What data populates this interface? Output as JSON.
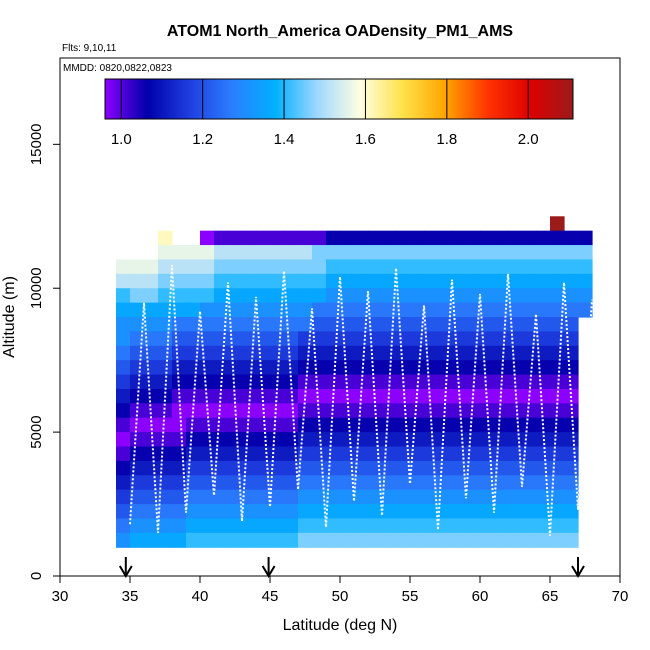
{
  "chart_data": {
    "type": "heatmap",
    "title": "ATOM1 North_America OADensity_PM1_AMS",
    "flights_label": "Flts: 9,10,11",
    "dates_label": "MMDD: 0820,0822,0823",
    "xlabel": "Latitude (deg N)",
    "ylabel": "Altitude (m)",
    "xlim": [
      30,
      70
    ],
    "ylim": [
      0,
      18000
    ],
    "x_ticks": [
      30,
      35,
      40,
      45,
      50,
      55,
      60,
      65,
      70
    ],
    "y_ticks": [
      0,
      5000,
      10000,
      15000
    ],
    "colorbar": {
      "range": [
        0.96,
        2.11
      ],
      "ticks": [
        1.0,
        1.2,
        1.4,
        1.6,
        1.8,
        2.0
      ],
      "tick_labels": [
        "1.0",
        "1.2",
        "1.4",
        "1.6",
        "1.8",
        "2.0"
      ],
      "stops": [
        "#8b00ff",
        "#0000aa",
        "#1f3fe0",
        "#2a7fff",
        "#00b0ff",
        "#a0d8ff",
        "#ffffe0",
        "#ffe14a",
        "#ffa500",
        "#ff3300",
        "#dd0000",
        "#9b1b1b"
      ]
    },
    "grid": {
      "lat_start": 34,
      "lat_step": 1,
      "alt_start": 1000,
      "alt_step": 500,
      "nodata_symbol": ".",
      "rows": [
        "...............................X....",
        "...N..ABBBBBBBBCCCCCCCCCCCCCCCCCCC..",
        "...MMMMLLLLLLLKKKKKKKKKKKKKKKKKKKK..",
        "MMMLLLLKKKKKKKKJJJJJJJJJJJJJJJJJJJ..",
        "LLLKKKKJJJJJJJJIIIIIIIIIIIIIIIIIII..",
        "JKKJJJJIIIIIIIIHHHHHHHHHHHHHHHHHHH..",
        "IIIIIIHHHHHHHHGGGGGGGGGGGGGGGGGGGG..",
        "HHHHGGGGGGGGGGFFFFFFFFFFFFFFFFFFF...",
        "HGGGFFFFFFFFFEEEEEEEEEEEEEEEEEEEE...",
        "GFFFEEEEEEEEEDDDDDDDDDDDDDDDDDDDD...",
        "FEEEDDDDDDDDDCCCCCCCCCCCCCCCCCCCC...",
        "EDDDCCCCCCCCCBBBBBBBBBBBBBBBBBBBB...",
        "DCCCBBBBBBBBBAAAAAAAAAAAAAAAAAAAA...",
        "CBBBAAAAAAAAABBBBBBBBBBBBBBBBBBBB...",
        "BAAAABBBBBBBBCCCCCCCCCCCCCCCCCCCC...",
        "ABBBBCCCCCCCCDDDDDDDDDDDDDDDDDDDD...",
        "BCCCCDDDDDDDDEEEEEEEEEEEEEEEEEEEE...",
        "CDDDDEEEEEEEEFFFFFFFFFFFFFFFFFFFF...",
        "DEEEEFFFFFFFFGGGGGGGGGGGGGGGGGGGG...",
        "EFFFFGGGGGGGGHHHHHHHHHHHHHHHHHHHH...",
        "FGGGGHHHHHHHHIIIIIIIIIIIIIIIIIIII...",
        "GHHHHIIIIIIIIJJJJJJJJJJJJJJJJJJJJ...",
        "HIIIIJJJJJJJJKKKKKKKKKKKKKKKKKKKK..."
      ]
    },
    "arrow_latitudes": [
      34.7,
      44.9,
      67.0
    ],
    "flight_tracks_color": "#ffffff"
  }
}
